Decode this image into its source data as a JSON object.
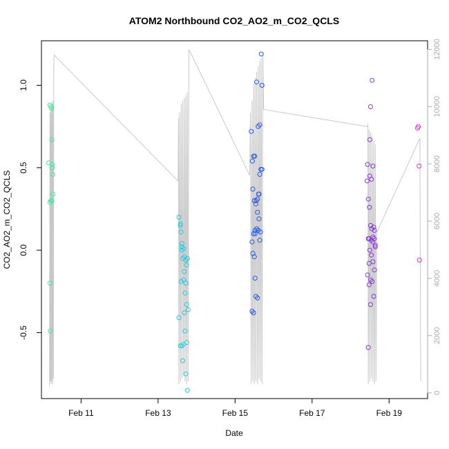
{
  "chart_data": {
    "type": "scatter",
    "title": "ATOM2 Northbound CO2_AO2_m_CO2_QCLS",
    "xlabel": "Date",
    "ylabel": "CO2_AO2_m_CO2_QCLS",
    "x_ticks": [
      "Feb 11",
      "Feb 13",
      "Feb 15",
      "Feb 17",
      "Feb 19"
    ],
    "x_tick_values": [
      11,
      13,
      15,
      17,
      19
    ],
    "xlim": [
      9.97,
      20.0
    ],
    "y_ticks": [
      -0.5,
      0.0,
      0.5,
      1.0
    ],
    "y_tick_labels": [
      "-0.5",
      "0.0",
      "0.5",
      "1.0"
    ],
    "ylim": [
      -0.9,
      1.27
    ],
    "y2_ticks": [
      0,
      2000,
      4000,
      6000,
      8000,
      10000,
      12000
    ],
    "y2_tick_labels": [
      "0",
      "2000",
      "4000",
      "6000",
      "8000",
      "10000",
      "12000"
    ],
    "y2lim": [
      -200,
      12300
    ],
    "grid": false,
    "legend": "none",
    "colors": {
      "flight1": "#33ee99",
      "flight2": "#22ccdd",
      "flight3": "#2255ee",
      "flight4": "#8833dd",
      "flight5": "#dd33dd",
      "altitude_line": "#c8c8c8",
      "right_axis": "#aaaaaa"
    },
    "series": [
      {
        "color_key": "flight1",
        "x": [
          10.19,
          10.22,
          10.23,
          10.24,
          10.25,
          10.16,
          10.27,
          10.19,
          10.22,
          10.27,
          10.24,
          10.19,
          10.2,
          10.25
        ],
        "y": [
          0.88,
          0.87,
          0.86,
          0.67,
          0.52,
          0.53,
          0.46,
          0.29,
          0.3,
          0.34,
          0.3,
          -0.2,
          -0.49,
          0.5
        ]
      },
      {
        "color_key": "flight2",
        "x": [
          13.54,
          13.58,
          13.6,
          13.62,
          13.66,
          13.68,
          13.72,
          13.74,
          13.76,
          13.58,
          13.62,
          13.64,
          13.68,
          13.72,
          13.78,
          13.66,
          13.7,
          13.74,
          13.58,
          13.62,
          13.66,
          13.7,
          13.74,
          13.64,
          13.72,
          13.54,
          13.6,
          13.68,
          13.76,
          13.62
        ],
        "y": [
          0.2,
          0.16,
          0.11,
          0.04,
          0.01,
          -0.04,
          -0.06,
          -0.09,
          -0.05,
          0.15,
          0.0,
          -0.05,
          -0.13,
          -0.2,
          -0.36,
          -0.18,
          -0.26,
          -0.33,
          -0.58,
          -0.58,
          -0.57,
          -0.49,
          -0.56,
          -0.67,
          -0.75,
          -0.41,
          -0.19,
          -0.38,
          -0.85,
          0.02
        ]
      },
      {
        "color_key": "flight3",
        "x": [
          15.42,
          15.45,
          15.48,
          15.51,
          15.55,
          15.58,
          15.61,
          15.64,
          15.67,
          15.7,
          15.46,
          15.5,
          15.54,
          15.58,
          15.62,
          15.66,
          15.44,
          15.48,
          15.52,
          15.56,
          15.6,
          15.64,
          15.46,
          15.5,
          15.54,
          15.58,
          15.44,
          15.48,
          15.52,
          15.56,
          15.6,
          15.64,
          15.68,
          15.52,
          15.62,
          15.7
        ],
        "y": [
          0.72,
          0.54,
          0.57,
          0.57,
          0.3,
          0.31,
          0.34,
          0.46,
          0.49,
          1.0,
          0.37,
          0.3,
          0.28,
          0.23,
          0.19,
          0.11,
          0.05,
          0.1,
          0.12,
          0.13,
          0.12,
          0.06,
          -0.02,
          -0.04,
          -0.28,
          -0.29,
          -0.37,
          -0.38,
          -0.17,
          1.02,
          0.75,
          0.76,
          1.19,
          0.1,
          0.34,
          0.49
        ]
      },
      {
        "color_key": "flight4",
        "x": [
          18.43,
          18.46,
          18.49,
          18.52,
          18.55,
          18.58,
          18.61,
          18.64,
          18.46,
          18.5,
          18.54,
          18.58,
          18.62,
          18.44,
          18.48,
          18.52,
          18.56,
          18.6,
          18.46,
          18.5,
          18.54,
          18.58,
          18.44,
          18.5,
          18.52,
          18.56,
          18.6,
          18.62,
          18.48,
          18.54,
          18.58,
          18.64,
          18.48,
          18.52
        ],
        "y": [
          0.42,
          0.31,
          0.26,
          0.15,
          0.13,
          0.08,
          0.07,
          0.02,
          0.07,
          0.0,
          -0.03,
          -0.07,
          -0.12,
          -0.15,
          -0.21,
          -0.33,
          -0.19,
          -0.28,
          -0.59,
          0.45,
          0.43,
          0.51,
          0.52,
          0.67,
          0.87,
          1.03,
          0.14,
          0.12,
          0.07,
          0.06,
          0.05,
          0.03,
          -0.08,
          -0.18
        ]
      },
      {
        "color_key": "flight5",
        "x": [
          19.74,
          19.76,
          19.78,
          19.79
        ],
        "y": [
          0.74,
          0.75,
          0.51,
          -0.06
        ]
      }
    ],
    "altitude_line": {
      "axis": "right",
      "x": [
        10.18,
        10.19,
        10.2,
        10.21,
        10.22,
        10.23,
        10.24,
        10.25,
        10.26,
        10.27,
        10.28,
        10.29,
        10.3,
        13.52,
        13.53,
        13.54,
        13.56,
        13.58,
        13.6,
        13.62,
        13.64,
        13.66,
        13.68,
        13.7,
        13.72,
        13.74,
        13.76,
        13.78,
        13.8,
        15.38,
        15.4,
        15.42,
        15.44,
        15.46,
        15.48,
        15.5,
        15.52,
        15.54,
        15.56,
        15.58,
        15.6,
        15.62,
        15.64,
        15.66,
        15.68,
        15.7,
        15.72,
        15.74,
        18.44,
        18.45,
        18.46,
        18.48,
        18.5,
        18.52,
        18.54,
        18.56,
        18.58,
        18.6,
        18.62,
        18.64,
        18.66,
        18.68,
        19.8,
        19.82
      ],
      "y": [
        200,
        9800,
        400,
        9900,
        300,
        10000,
        400,
        10100,
        300,
        10200,
        500,
        11400,
        11800,
        7400,
        9600,
        300,
        9800,
        400,
        10100,
        500,
        10200,
        600,
        10300,
        400,
        10400,
        300,
        10500,
        400,
        12000,
        7600,
        9800,
        300,
        10200,
        400,
        10800,
        300,
        11000,
        400,
        11200,
        300,
        11400,
        500,
        11600,
        400,
        11700,
        300,
        11800,
        9900,
        9300,
        9400,
        300,
        9200,
        400,
        9100,
        500,
        9000,
        400,
        8800,
        300,
        8700,
        400,
        5600,
        8900,
        400
      ]
    }
  }
}
